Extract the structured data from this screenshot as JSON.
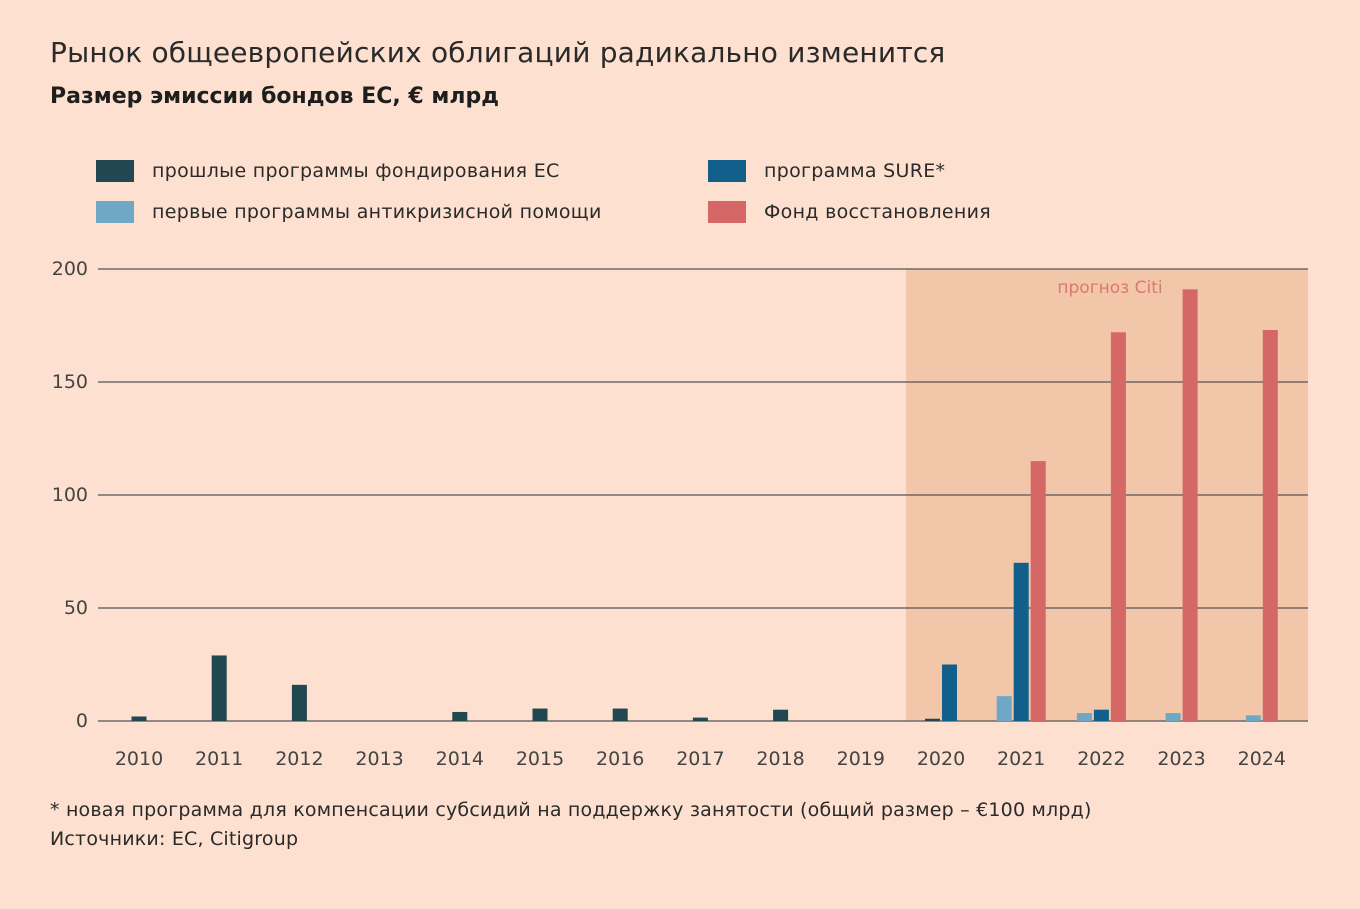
{
  "title": "Рынок общеевропейских облигаций радикально изменится",
  "subtitle": "Размер эмиссии бондов ЕС, € млрд",
  "footnote": "* новая программа для компенсации субсидий на поддержку занятости (общий размер – €100 млрд)",
  "source": "Источники: ЕС, Citigroup",
  "colors": {
    "background": "#fde0cf",
    "forecast_band": "#f2c6a8",
    "past": "#214751",
    "crisis": "#6fa8c6",
    "sure": "#135f8c",
    "recovery": "#d66767",
    "forecast_label": "#d97a70",
    "gridline": "#555555"
  },
  "legend": [
    {
      "label": "прошлые программы фондирования ЕС",
      "color": "#214751"
    },
    {
      "label": "первые программы антикризисной помощи",
      "color": "#6fa8c6"
    },
    {
      "label": "программа SURE*",
      "color": "#135f8c"
    },
    {
      "label": "Фонд восстановления",
      "color": "#d66767"
    }
  ],
  "chart_data": {
    "type": "bar",
    "categories": [
      "2010",
      "2011",
      "2012",
      "2013",
      "2014",
      "2015",
      "2016",
      "2017",
      "2018",
      "2019",
      "2020",
      "2021",
      "2022",
      "2023",
      "2024"
    ],
    "series": [
      {
        "name": "прошлые программы фондирования ЕС",
        "color": "#214751",
        "values": [
          2,
          29,
          16,
          0,
          4,
          5.5,
          5.5,
          1.5,
          5,
          0,
          1,
          0,
          0,
          0,
          0
        ]
      },
      {
        "name": "первые программы антикризисной помощи",
        "color": "#6fa8c6",
        "values": [
          0,
          0,
          0,
          0,
          0,
          0,
          0,
          0,
          0,
          0,
          0,
          11,
          3.5,
          3.5,
          2.5
        ]
      },
      {
        "name": "программа SURE*",
        "color": "#135f8c",
        "values": [
          0,
          0,
          0,
          0,
          0,
          0,
          0,
          0,
          0,
          0,
          25,
          70,
          5,
          0,
          0
        ]
      },
      {
        "name": "Фонд восстановления",
        "color": "#d66767",
        "values": [
          0,
          0,
          0,
          0,
          0,
          0,
          0,
          0,
          0,
          0,
          0,
          115,
          172,
          191,
          173
        ]
      }
    ],
    "yticks": [
      "0",
      "50",
      "100",
      "150",
      "200"
    ],
    "ylim": [
      0,
      200
    ],
    "forecast_label": "прогноз Citi",
    "forecast_range": [
      "2020",
      "2024"
    ],
    "grid": true
  }
}
